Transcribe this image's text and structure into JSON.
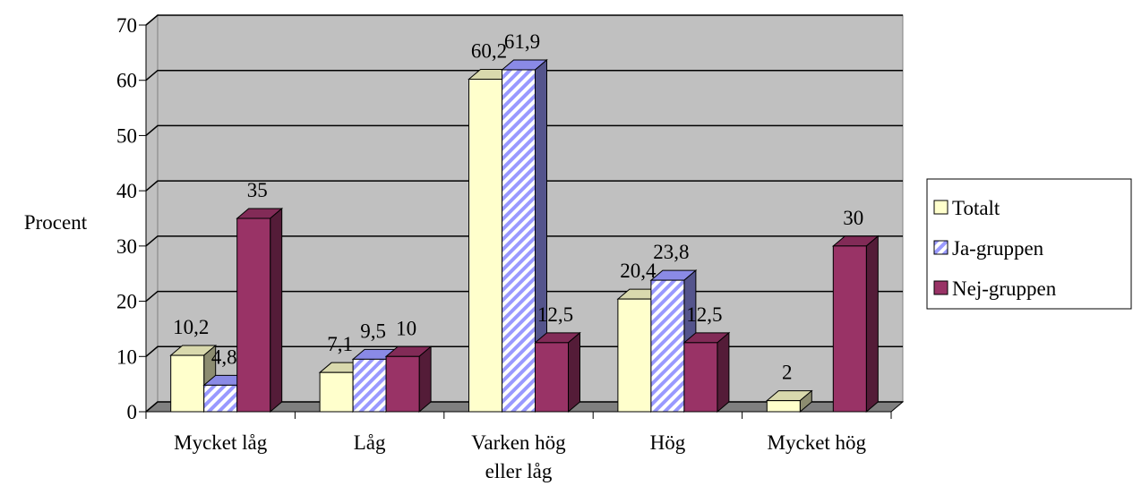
{
  "chart_data": {
    "type": "bar3d",
    "y_label": "Procent",
    "categories": [
      "Mycket låg",
      "Låg",
      "Varken hög eller låg",
      "Hög",
      "Mycket hög"
    ],
    "series": [
      {
        "name": "Totalt",
        "color": "#ffffcc",
        "values": [
          10.2,
          7.1,
          60.2,
          20.4,
          2
        ],
        "value_labels": [
          "10,2",
          "7,1",
          "60,2",
          "20,4",
          "2"
        ]
      },
      {
        "name": "Ja-gruppen",
        "color": "#9999ff",
        "hatch": true,
        "values": [
          4.8,
          9.5,
          61.9,
          23.8,
          null
        ],
        "value_labels": [
          "4,8",
          "9,5",
          "61,9",
          "23,8",
          null
        ]
      },
      {
        "name": "Nej-gruppen",
        "color": "#993366",
        "values": [
          35,
          10,
          12.5,
          12.5,
          30
        ],
        "value_labels": [
          "35",
          "10",
          "12,5",
          "12,5",
          "30"
        ]
      }
    ],
    "ylim": [
      0,
      70
    ],
    "yticks": [
      0,
      10,
      20,
      30,
      40,
      50,
      60,
      70
    ],
    "grid": true,
    "wall_color": "#c0c0c0",
    "legend": "right"
  }
}
